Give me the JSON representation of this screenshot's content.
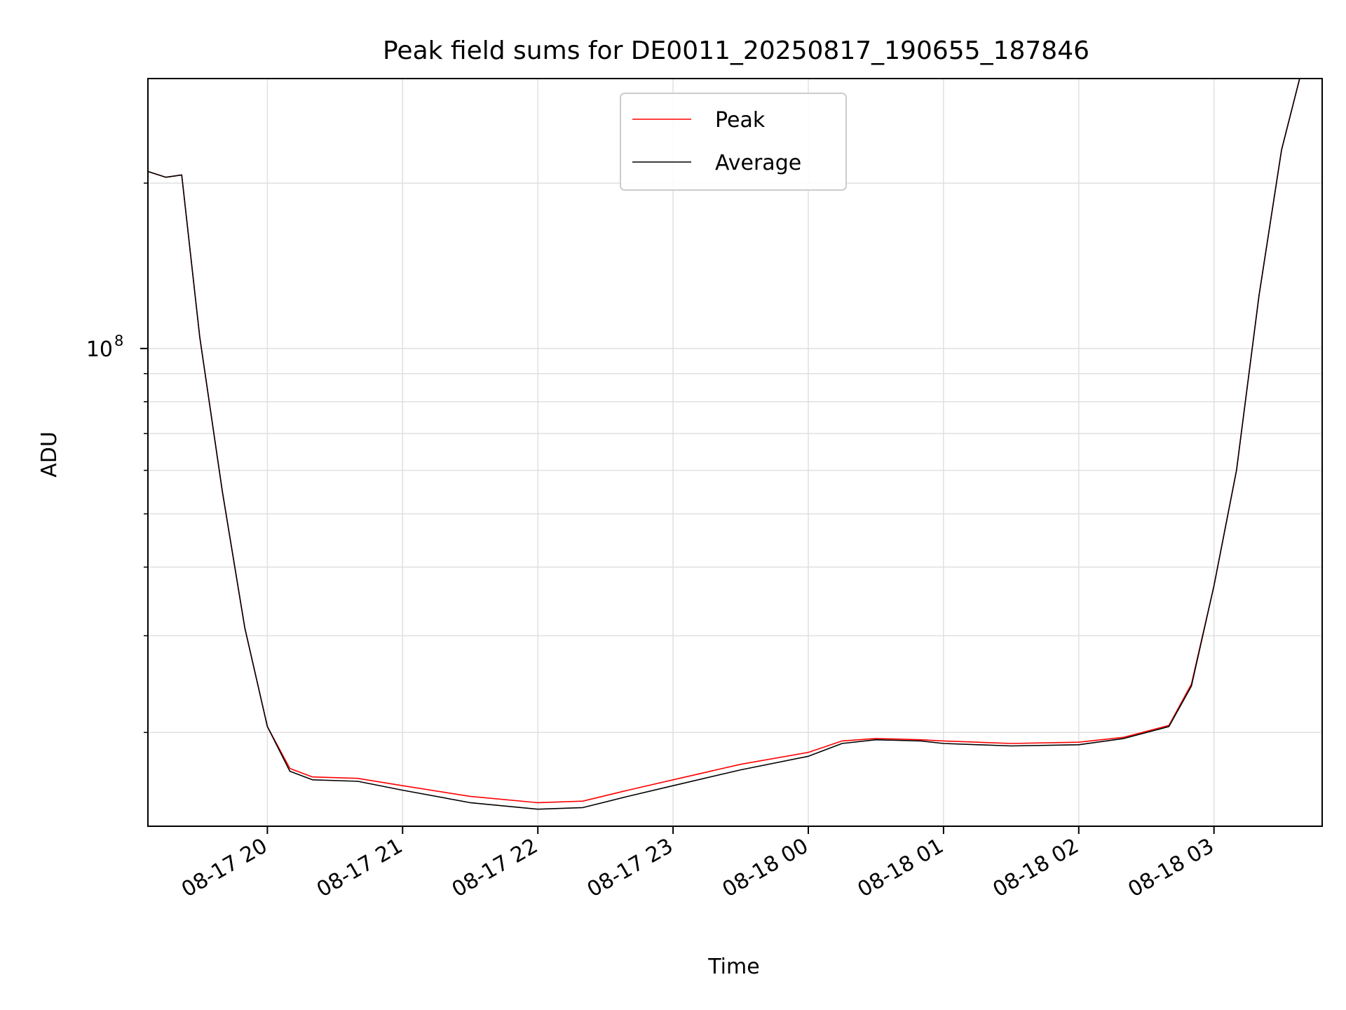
{
  "chart_data": {
    "type": "line",
    "title": "Peak field sums for DE0011_20250817_190655_187846",
    "xlabel": "Time",
    "ylabel": "ADU",
    "yscale": "log",
    "ylim": [
      13500000,
      310000000
    ],
    "xlim": [
      "2025-08-17 19:07",
      "2025-08-18 03:48"
    ],
    "x_ticks": [
      {
        "t": "2025-08-17 20:00",
        "label": "08-17 20"
      },
      {
        "t": "2025-08-17 21:00",
        "label": "08-17 21"
      },
      {
        "t": "2025-08-17 22:00",
        "label": "08-17 22"
      },
      {
        "t": "2025-08-17 23:00",
        "label": "08-17 23"
      },
      {
        "t": "2025-08-18 00:00",
        "label": "08-18 00"
      },
      {
        "t": "2025-08-18 01:00",
        "label": "08-18 01"
      },
      {
        "t": "2025-08-18 02:00",
        "label": "08-18 02"
      },
      {
        "t": "2025-08-18 03:00",
        "label": "08-18 03"
      }
    ],
    "y_major_ticks": [
      {
        "value": 100000000,
        "label": "10",
        "exp": "8"
      }
    ],
    "y_minor_ticks": [
      20000000,
      30000000,
      40000000,
      50000000,
      60000000,
      70000000,
      80000000,
      90000000,
      200000000
    ],
    "grid": true,
    "legend": {
      "position": "upper center"
    },
    "series": [
      {
        "name": "Peak",
        "color": "#ff0000",
        "x": [
          "2025-08-17 19:07",
          "2025-08-17 19:15",
          "2025-08-17 19:22",
          "2025-08-17 19:30",
          "2025-08-17 19:40",
          "2025-08-17 19:50",
          "2025-08-17 20:00",
          "2025-08-17 20:10",
          "2025-08-17 20:20",
          "2025-08-17 20:40",
          "2025-08-17 21:00",
          "2025-08-17 21:30",
          "2025-08-17 22:00",
          "2025-08-17 22:20",
          "2025-08-17 22:40",
          "2025-08-17 23:00",
          "2025-08-17 23:30",
          "2025-08-18 00:00",
          "2025-08-18 00:15",
          "2025-08-18 00:30",
          "2025-08-18 00:50",
          "2025-08-18 01:00",
          "2025-08-18 01:30",
          "2025-08-18 02:00",
          "2025-08-18 02:20",
          "2025-08-18 02:40",
          "2025-08-18 02:50",
          "2025-08-18 03:00",
          "2025-08-18 03:10",
          "2025-08-18 03:20",
          "2025-08-18 03:30",
          "2025-08-18 03:38"
        ],
        "values": [
          210000000,
          205000000,
          207000000,
          105000000,
          55000000,
          31000000,
          20500000,
          17200000,
          16600000,
          16500000,
          16000000,
          15300000,
          14900000,
          15000000,
          15700000,
          16400000,
          17500000,
          18400000,
          19300000,
          19500000,
          19400000,
          19300000,
          19100000,
          19200000,
          19600000,
          20600000,
          24500000,
          37000000,
          60000000,
          125000000,
          230000000,
          310000000
        ]
      },
      {
        "name": "Average",
        "color": "#000000",
        "x": [
          "2025-08-17 19:07",
          "2025-08-17 19:15",
          "2025-08-17 19:22",
          "2025-08-17 19:30",
          "2025-08-17 19:40",
          "2025-08-17 19:50",
          "2025-08-17 20:00",
          "2025-08-17 20:10",
          "2025-08-17 20:20",
          "2025-08-17 20:40",
          "2025-08-17 21:00",
          "2025-08-17 21:30",
          "2025-08-17 22:00",
          "2025-08-17 22:20",
          "2025-08-17 22:40",
          "2025-08-17 23:00",
          "2025-08-17 23:30",
          "2025-08-18 00:00",
          "2025-08-18 00:15",
          "2025-08-18 00:30",
          "2025-08-18 00:50",
          "2025-08-18 01:00",
          "2025-08-18 01:30",
          "2025-08-18 02:00",
          "2025-08-18 02:20",
          "2025-08-18 02:40",
          "2025-08-18 02:50",
          "2025-08-18 03:00",
          "2025-08-18 03:10",
          "2025-08-18 03:20",
          "2025-08-18 03:30",
          "2025-08-18 03:38"
        ],
        "values": [
          210000000,
          205000000,
          207000000,
          105000000,
          55000000,
          31000000,
          20500000,
          17000000,
          16400000,
          16300000,
          15700000,
          14900000,
          14500000,
          14600000,
          15300000,
          16000000,
          17100000,
          18100000,
          19100000,
          19400000,
          19300000,
          19100000,
          18900000,
          19000000,
          19500000,
          20500000,
          24300000,
          37000000,
          60000000,
          125000000,
          230000000,
          310000000
        ]
      }
    ]
  }
}
